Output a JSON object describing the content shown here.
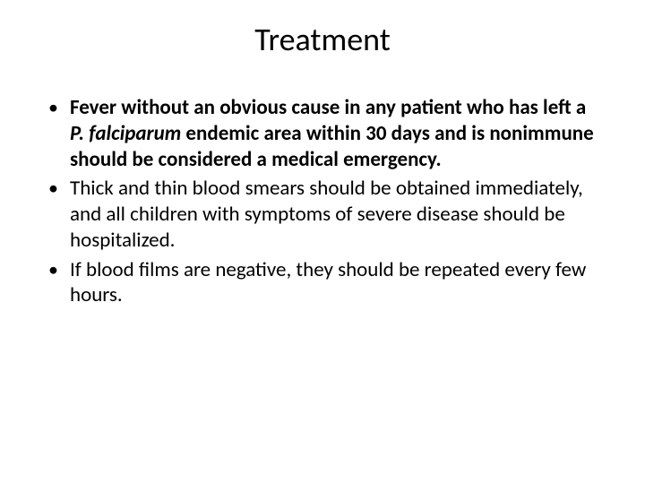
{
  "slide": {
    "title": "Treatment",
    "bullets": [
      {
        "runs": [
          {
            "t": "Fever without an obvious cause in any patient who has left a ",
            "b": true
          },
          {
            "t": "P. falciparum",
            "b": true,
            "i": true
          },
          {
            "t": " endemic area within 30 days and is nonimmune should be considered a medical emergency.",
            "b": true
          }
        ]
      },
      {
        "runs": [
          {
            "t": "Thick and thin blood smears should be obtained immediately, and all children with symptoms of severe disease should be hospitalized."
          }
        ]
      },
      {
        "runs": [
          {
            "t": "If blood films are negative, they should be repeated every few hours."
          }
        ]
      }
    ]
  },
  "style": {
    "background_color": "#ffffff",
    "text_color": "#000000",
    "title_fontsize": 36,
    "body_fontsize": 23,
    "font_family": "Calibri"
  }
}
